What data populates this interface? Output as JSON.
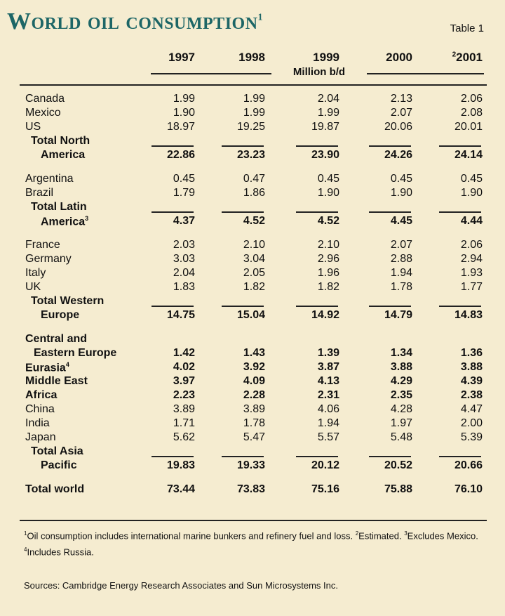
{
  "title": "World oil consumption",
  "title_sup": "1",
  "table_label": "Table 1",
  "years": [
    {
      "label": "1997",
      "sup": ""
    },
    {
      "label": "1998",
      "sup": ""
    },
    {
      "label": "1999",
      "sup": ""
    },
    {
      "label": "2000",
      "sup": ""
    },
    {
      "label": "2001",
      "sup": "2"
    }
  ],
  "unit": "Million b/d",
  "rows": [
    {
      "lines": [
        "Canada"
      ],
      "sup": "",
      "values": [
        "1.99",
        "1.99",
        "2.04",
        "2.13",
        "2.06"
      ],
      "bold": false
    },
    {
      "lines": [
        "Mexico"
      ],
      "sup": "",
      "values": [
        "1.90",
        "1.99",
        "1.99",
        "2.07",
        "2.08"
      ],
      "bold": false
    },
    {
      "lines": [
        "US"
      ],
      "sup": "",
      "values": [
        "18.97",
        "19.25",
        "19.87",
        "20.06",
        "20.01"
      ],
      "bold": false
    },
    {
      "lines": [
        "Total North",
        "America"
      ],
      "sup": "",
      "values": [
        "22.86",
        "23.23",
        "23.90",
        "24.26",
        "24.14"
      ],
      "bold": true,
      "total": true
    },
    {
      "lines": [
        "Argentina"
      ],
      "sup": "",
      "values": [
        "0.45",
        "0.47",
        "0.45",
        "0.45",
        "0.45"
      ],
      "bold": false
    },
    {
      "lines": [
        "Brazil"
      ],
      "sup": "",
      "values": [
        "1.79",
        "1.86",
        "1.90",
        "1.90",
        "1.90"
      ],
      "bold": false
    },
    {
      "lines": [
        "Total Latin",
        "America"
      ],
      "sup": "3",
      "values": [
        "4.37",
        "4.52",
        "4.52",
        "4.45",
        "4.44"
      ],
      "bold": true,
      "total": true
    },
    {
      "lines": [
        "France"
      ],
      "sup": "",
      "values": [
        "2.03",
        "2.10",
        "2.10",
        "2.07",
        "2.06"
      ],
      "bold": false
    },
    {
      "lines": [
        "Germany"
      ],
      "sup": "",
      "values": [
        "3.03",
        "3.04",
        "2.96",
        "2.88",
        "2.94"
      ],
      "bold": false
    },
    {
      "lines": [
        "Italy"
      ],
      "sup": "",
      "values": [
        "2.04",
        "2.05",
        "1.96",
        "1.94",
        "1.93"
      ],
      "bold": false
    },
    {
      "lines": [
        "UK"
      ],
      "sup": "",
      "values": [
        "1.83",
        "1.82",
        "1.82",
        "1.78",
        "1.77"
      ],
      "bold": false
    },
    {
      "lines": [
        "Total Western",
        "Europe"
      ],
      "sup": "",
      "values": [
        "14.75",
        "15.04",
        "14.92",
        "14.79",
        "14.83"
      ],
      "bold": true,
      "total": true
    },
    {
      "lines": [
        "Central and",
        "Eastern Europe"
      ],
      "sup": "",
      "values": [
        "1.42",
        "1.43",
        "1.39",
        "1.34",
        "1.36"
      ],
      "bold": true
    },
    {
      "lines": [
        "Eurasia"
      ],
      "sup": "4",
      "values": [
        "4.02",
        "3.92",
        "3.87",
        "3.88",
        "3.88"
      ],
      "bold": true
    },
    {
      "lines": [
        "Middle East"
      ],
      "sup": "",
      "values": [
        "3.97",
        "4.09",
        "4.13",
        "4.29",
        "4.39"
      ],
      "bold": true
    },
    {
      "lines": [
        "Africa"
      ],
      "sup": "",
      "values": [
        "2.23",
        "2.28",
        "2.31",
        "2.35",
        "2.38"
      ],
      "bold": true
    },
    {
      "lines": [
        "China"
      ],
      "sup": "",
      "values": [
        "3.89",
        "3.89",
        "4.06",
        "4.28",
        "4.47"
      ],
      "bold": false
    },
    {
      "lines": [
        "India"
      ],
      "sup": "",
      "values": [
        "1.71",
        "1.78",
        "1.94",
        "1.97",
        "2.00"
      ],
      "bold": false
    },
    {
      "lines": [
        "Japan"
      ],
      "sup": "",
      "values": [
        "5.62",
        "5.47",
        "5.57",
        "5.48",
        "5.39"
      ],
      "bold": false
    },
    {
      "lines": [
        "Total Asia",
        "Pacific"
      ],
      "sup": "",
      "values": [
        "19.83",
        "19.33",
        "20.12",
        "20.52",
        "20.66"
      ],
      "bold": true,
      "total": true
    },
    {
      "lines": [
        "Total world"
      ],
      "sup": "",
      "values": [
        "73.44",
        "73.83",
        "75.16",
        "75.88",
        "76.10"
      ],
      "bold": true
    }
  ],
  "footnotes": {
    "n1": "1",
    "t1": "Oil consumption includes international marine bunkers and refinery fuel and loss. ",
    "n2": "2",
    "t2": "Estimated. ",
    "n3": "3",
    "t3": "Excludes Mexico. ",
    "n4": "4",
    "t4": "Includes Russia."
  },
  "sources": "Sources: Cambridge Energy Research Associates and Sun Microsystems Inc."
}
